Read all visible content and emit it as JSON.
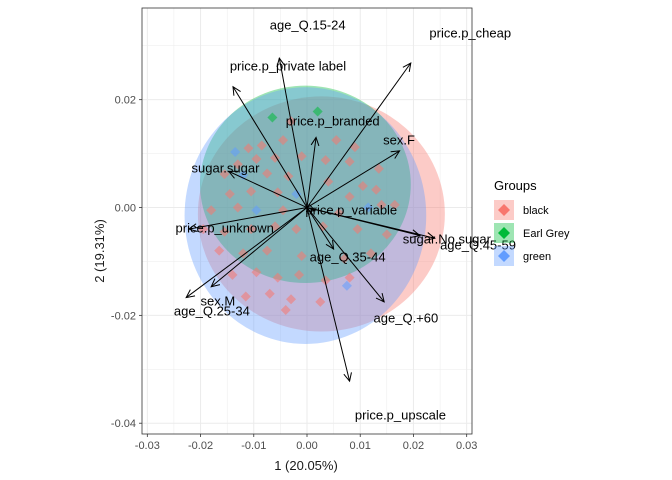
{
  "chart_data": {
    "type": "scatter",
    "subtype": "biplot",
    "xlabel": "1 (20.05%)",
    "ylabel": "2 (19.31%)",
    "xlim": [
      -0.031,
      0.031
    ],
    "ylim": [
      -0.042,
      0.037
    ],
    "x_ticks": [
      -0.03,
      -0.02,
      -0.01,
      0.0,
      0.01,
      0.02,
      0.03
    ],
    "x_tick_labels": [
      "-0.03",
      "-0.02",
      "-0.01",
      "0.00",
      "0.01",
      "0.02",
      "0.03"
    ],
    "y_ticks": [
      -0.04,
      -0.02,
      0.0,
      0.02
    ],
    "y_tick_labels": [
      "-0.04",
      "-0.02",
      "0.00",
      "0.02"
    ],
    "grid": true,
    "legend": {
      "title": "Groups",
      "position": "right",
      "entries": [
        {
          "name": "black",
          "color": "#F8766D"
        },
        {
          "name": "Earl Grey",
          "color": "#00BA38"
        },
        {
          "name": "green",
          "color": "#619CFF"
        }
      ]
    },
    "ellipses": [
      {
        "group": "black",
        "color": "#F8766D",
        "center": [
          0.0027,
          -0.0012
        ],
        "rx": 0.0232,
        "ry": 0.0218
      },
      {
        "group": "Earl Grey",
        "color": "#00BA38",
        "center": [
          -0.0003,
          0.0043
        ],
        "rx": 0.0198,
        "ry": 0.0183
      },
      {
        "group": "green",
        "color": "#619CFF",
        "center": [
          -0.0003,
          -0.0015
        ],
        "rx": 0.0227,
        "ry": 0.0238
      }
    ],
    "variables": [
      {
        "name": "age_Q.15-24",
        "x": -0.0052,
        "y": 0.0277,
        "lx": -0.007,
        "ly": 0.033
      },
      {
        "name": "price.p_cheap",
        "x": 0.0195,
        "y": 0.0268,
        "lx": 0.023,
        "ly": 0.0315
      },
      {
        "name": "price.p_private label",
        "x": -0.0139,
        "y": 0.0224,
        "lx": -0.0145,
        "ly": 0.0254
      },
      {
        "name": "price.p_branded",
        "x": 0.0017,
        "y": 0.013,
        "lx": -0.004,
        "ly": 0.0152
      },
      {
        "name": "sex.F",
        "x": 0.0174,
        "y": 0.0105,
        "lx": 0.0143,
        "ly": 0.0117
      },
      {
        "name": "sugar.sugar",
        "x": -0.0147,
        "y": 0.0067,
        "lx": -0.0217,
        "ly": 0.0065
      },
      {
        "name": "price.p_variable",
        "x": 0.0015,
        "y": -0.0006,
        "lx": -0.0003,
        "ly": -0.0013
      },
      {
        "name": "price.p_unknown",
        "x": -0.0222,
        "y": -0.004,
        "lx": -0.0247,
        "ly": -0.0046
      },
      {
        "name": "sugar.No.sugar",
        "x": 0.0212,
        "y": -0.0052,
        "lx": 0.018,
        "ly": -0.0067
      },
      {
        "name": "age_Q.45-59",
        "x": 0.024,
        "y": -0.0057,
        "lx": 0.025,
        "ly": -0.0078
      },
      {
        "name": "age_Q.35-44",
        "x": 0.005,
        "y": -0.0077,
        "lx": 0.0005,
        "ly": -0.01
      },
      {
        "name": "sex.M",
        "x": -0.0227,
        "y": -0.0167,
        "lx": -0.02,
        "ly": -0.0182
      },
      {
        "name": "age_Q.25-34",
        "x": -0.018,
        "y": -0.0147,
        "lx": -0.025,
        "ly": -0.02
      },
      {
        "name": "age_Q.+60",
        "x": 0.0145,
        "y": -0.0175,
        "lx": 0.0125,
        "ly": -0.0213
      },
      {
        "name": "price.p_upscale",
        "x": 0.008,
        "y": -0.0322,
        "lx": 0.009,
        "ly": -0.0393
      }
    ],
    "points": [
      {
        "group": "Earl Grey",
        "x": -0.0065,
        "y": 0.0167
      },
      {
        "group": "Earl Grey",
        "x": 0.002,
        "y": 0.0178
      },
      {
        "group": "green",
        "x": -0.0135,
        "y": 0.0103
      },
      {
        "group": "black",
        "x": -0.011,
        "y": 0.011
      },
      {
        "group": "black",
        "x": -0.0085,
        "y": 0.0115
      },
      {
        "group": "black",
        "x": -0.0045,
        "y": 0.0125
      },
      {
        "group": "black",
        "x": -0.003,
        "y": 0.016
      },
      {
        "group": "black",
        "x": 0.0055,
        "y": 0.0125
      },
      {
        "group": "black",
        "x": 0.009,
        "y": 0.0112
      },
      {
        "group": "black",
        "x": -0.013,
        "y": 0.008
      },
      {
        "group": "black",
        "x": -0.0095,
        "y": 0.009
      },
      {
        "group": "black",
        "x": -0.006,
        "y": 0.0092
      },
      {
        "group": "black",
        "x": -0.001,
        "y": 0.0095
      },
      {
        "group": "black",
        "x": 0.0035,
        "y": 0.0088
      },
      {
        "group": "black",
        "x": 0.008,
        "y": 0.0085
      },
      {
        "group": "black",
        "x": 0.0135,
        "y": 0.0072
      },
      {
        "group": "black",
        "x": -0.0155,
        "y": 0.0062
      },
      {
        "group": "green",
        "x": -0.012,
        "y": 0.006
      },
      {
        "group": "black",
        "x": -0.0075,
        "y": 0.0063
      },
      {
        "group": "black",
        "x": -0.0035,
        "y": 0.0058
      },
      {
        "group": "black",
        "x": 0.004,
        "y": 0.0048
      },
      {
        "group": "black",
        "x": 0.0105,
        "y": 0.004
      },
      {
        "group": "black",
        "x": 0.013,
        "y": 0.0033
      },
      {
        "group": "black",
        "x": -0.0145,
        "y": 0.0025
      },
      {
        "group": "black",
        "x": -0.0105,
        "y": 0.003
      },
      {
        "group": "black",
        "x": -0.0055,
        "y": 0.0028
      },
      {
        "group": "green",
        "x": -0.002,
        "y": 0.0025
      },
      {
        "group": "black",
        "x": 0.008,
        "y": 0.002
      },
      {
        "group": "black",
        "x": 0.014,
        "y": 0.0005
      },
      {
        "group": "black",
        "x": 0.0165,
        "y": 0.0005
      },
      {
        "group": "black",
        "x": -0.018,
        "y": -0.0005
      },
      {
        "group": "black",
        "x": -0.013,
        "y": 0.0
      },
      {
        "group": "green",
        "x": -0.0095,
        "y": -0.0005
      },
      {
        "group": "black",
        "x": -0.0045,
        "y": -0.0005
      },
      {
        "group": "black",
        "x": 0.006,
        "y": -0.001
      },
      {
        "group": "green",
        "x": 0.0115,
        "y": 0.0
      },
      {
        "group": "black",
        "x": -0.0195,
        "y": -0.004
      },
      {
        "group": "black",
        "x": -0.0155,
        "y": -0.0045
      },
      {
        "group": "black",
        "x": -0.0105,
        "y": -0.004
      },
      {
        "group": "black",
        "x": -0.006,
        "y": -0.0035
      },
      {
        "group": "black",
        "x": -0.002,
        "y": -0.004
      },
      {
        "group": "black",
        "x": 0.003,
        "y": -0.0035
      },
      {
        "group": "black",
        "x": 0.0095,
        "y": -0.004
      },
      {
        "group": "black",
        "x": 0.015,
        "y": -0.005
      },
      {
        "group": "black",
        "x": -0.0165,
        "y": -0.008
      },
      {
        "group": "black",
        "x": -0.012,
        "y": -0.0085
      },
      {
        "group": "black",
        "x": -0.0075,
        "y": -0.008
      },
      {
        "group": "black",
        "x": -0.001,
        "y": -0.009
      },
      {
        "group": "black",
        "x": 0.007,
        "y": -0.0095
      },
      {
        "group": "black",
        "x": 0.012,
        "y": -0.0085
      },
      {
        "group": "black",
        "x": -0.014,
        "y": -0.0125
      },
      {
        "group": "black",
        "x": -0.0095,
        "y": -0.012
      },
      {
        "group": "black",
        "x": -0.0055,
        "y": -0.013
      },
      {
        "group": "black",
        "x": -0.0015,
        "y": -0.0125
      },
      {
        "group": "black",
        "x": 0.0035,
        "y": -0.0135
      },
      {
        "group": "black",
        "x": 0.008,
        "y": -0.013
      },
      {
        "group": "black",
        "x": -0.0115,
        "y": -0.0165
      },
      {
        "group": "black",
        "x": -0.007,
        "y": -0.016
      },
      {
        "group": "black",
        "x": -0.003,
        "y": -0.017
      },
      {
        "group": "green",
        "x": 0.0075,
        "y": -0.0145
      },
      {
        "group": "black",
        "x": -0.004,
        "y": -0.019
      },
      {
        "group": "black",
        "x": 0.0025,
        "y": -0.0175
      }
    ]
  }
}
